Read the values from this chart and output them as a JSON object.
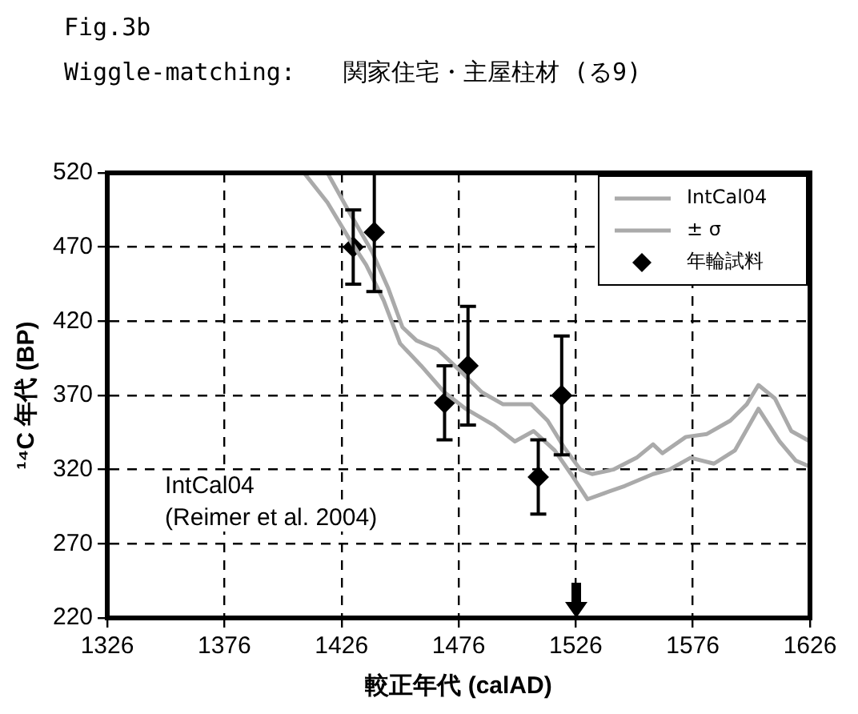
{
  "chart_data": {
    "type": "line",
    "title": "Fig.3b",
    "subtitle": "Wiggle-matching:　　関家住宅・主屋柱材 (る9)",
    "xlabel": "較正年代 (calAD)",
    "ylabel": "¹⁴C 年代 (BP)",
    "xlim": [
      1326,
      1626
    ],
    "xticks": [
      1326,
      1376,
      1426,
      1476,
      1526,
      1576,
      1626
    ],
    "ylim": [
      220,
      520
    ],
    "yticks": [
      220,
      270,
      320,
      370,
      420,
      470,
      520
    ],
    "grid": true,
    "legend": "top right",
    "annotations": [
      "IntCal04",
      "(Reimer et al. 2004)"
    ],
    "series": [
      {
        "name": "IntCal04",
        "color": "#aaaaaa",
        "marker": "none",
        "x": [
          1420,
          1429.5,
          1439,
          1446,
          1452,
          1458,
          1467,
          1477,
          1486,
          1495,
          1507,
          1514,
          1521,
          1528,
          1533,
          1542,
          1552,
          1559,
          1563,
          1573,
          1582,
          1592,
          1599,
          1604,
          1611,
          1618,
          1626
        ],
        "values": [
          520,
          493,
          467,
          442,
          416,
          407,
          401,
          386,
          372,
          364,
          364,
          353,
          335,
          320,
          317,
          320,
          328,
          337,
          331,
          342,
          344,
          353,
          364,
          377,
          368,
          346,
          339
        ]
      },
      {
        "name": "± σ",
        "color": "#aaaaaa",
        "marker": "none",
        "x": [
          1410,
          1420,
          1429.5,
          1436.5,
          1444,
          1451,
          1460,
          1470,
          1479,
          1491,
          1500,
          1508,
          1517,
          1524,
          1531,
          1538,
          1547,
          1559,
          1566,
          1575,
          1585,
          1594,
          1604,
          1613,
          1620,
          1626
        ],
        "values": [
          520,
          500,
          475,
          458,
          434,
          405,
          390,
          372,
          361,
          350,
          339,
          346,
          333,
          317,
          300,
          304,
          309,
          317,
          320,
          328,
          324,
          333,
          361,
          339,
          326,
          322
        ]
      },
      {
        "name": "年輪試料",
        "type": "scatter",
        "color": "#000000",
        "marker": "diamond",
        "x": [
          1431,
          1440,
          1470,
          1480,
          1510,
          1520
        ],
        "values": [
          470,
          480,
          365,
          390,
          315,
          370
        ],
        "errors": [
          25,
          40,
          25,
          40,
          25,
          40
        ]
      }
    ]
  }
}
